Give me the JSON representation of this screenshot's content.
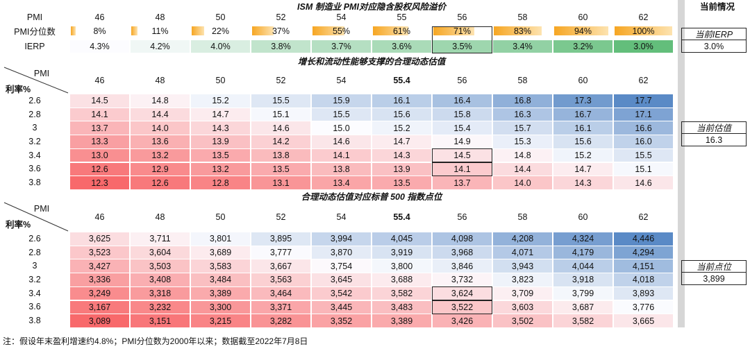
{
  "title": "ISM 制造业 PMI对应隐含股权风险溢价",
  "current_header": "当前情况",
  "top_table": {
    "row_labels": [
      "PMI",
      "PMI分位数",
      "IERP"
    ],
    "pmi": [
      "46",
      "48",
      "50",
      "52",
      "54",
      "55",
      "56",
      "58",
      "60",
      "62"
    ],
    "percentile": {
      "values": [
        8,
        11,
        22,
        37,
        55,
        61,
        71,
        83,
        94,
        100
      ],
      "value_labels": [
        "8%",
        "11%",
        "22%",
        "37%",
        "55%",
        "61%",
        "71%",
        "83%",
        "94%",
        "100%"
      ]
    },
    "ierp": [
      "4.3%",
      "4.2%",
      "4.0%",
      "3.8%",
      "3.7%",
      "3.6%",
      "3.5%",
      "3.4%",
      "3.2%",
      "3.0%"
    ]
  },
  "valuation": {
    "title": "增长和流动性能够支撑的合理动态估值",
    "corner_top": "PMI",
    "corner_bottom": "利率%",
    "pmi": [
      "46",
      "48",
      "50",
      "52",
      "54",
      "55.4",
      "56",
      "58",
      "60",
      "62"
    ],
    "rates": [
      "2.6",
      "2.8",
      "3",
      "3.2",
      "3.4",
      "3.6",
      "3.8"
    ],
    "rows": [
      [
        "14.5",
        "14.8",
        "15.2",
        "15.5",
        "15.9",
        "16.1",
        "16.4",
        "16.8",
        "17.3",
        "17.7"
      ],
      [
        "14.1",
        "14.4",
        "14.7",
        "15.1",
        "15.5",
        "15.6",
        "15.8",
        "16.3",
        "16.7",
        "17.1"
      ],
      [
        "13.7",
        "14.0",
        "14.3",
        "14.6",
        "15.0",
        "15.2",
        "15.4",
        "15.7",
        "16.1",
        "16.6"
      ],
      [
        "13.3",
        "13.6",
        "13.9",
        "14.2",
        "14.6",
        "14.7",
        "14.9",
        "15.3",
        "15.6",
        "16.0"
      ],
      [
        "13.0",
        "13.2",
        "13.5",
        "13.8",
        "14.1",
        "14.3",
        "14.5",
        "14.8",
        "15.2",
        "15.5"
      ],
      [
        "12.6",
        "12.9",
        "13.2",
        "13.5",
        "13.8",
        "13.9",
        "14.1",
        "14.4",
        "14.7",
        "15.1"
      ],
      [
        "12.3",
        "12.6",
        "12.8",
        "13.1",
        "13.4",
        "13.5",
        "13.7",
        "14.0",
        "14.3",
        "14.6"
      ]
    ]
  },
  "index_points": {
    "title": "合理动态估值对应标普 500 指数点位",
    "corner_top": "PMI",
    "corner_bottom": "利率%",
    "pmi": [
      "46",
      "48",
      "50",
      "52",
      "54",
      "55.4",
      "56",
      "58",
      "60",
      "62"
    ],
    "rates": [
      "2.6",
      "2.8",
      "3",
      "3.2",
      "3.4",
      "3.6",
      "3.8"
    ],
    "rows": [
      [
        "3,625",
        "3,711",
        "3,801",
        "3,895",
        "3,994",
        "4,045",
        "4,098",
        "4,208",
        "4,324",
        "4,446"
      ],
      [
        "3,523",
        "3,604",
        "3,689",
        "3,777",
        "3,870",
        "3,919",
        "3,968",
        "4,071",
        "4,179",
        "4,294"
      ],
      [
        "3,427",
        "3,503",
        "3,583",
        "3,667",
        "3,754",
        "3,800",
        "3,846",
        "3,943",
        "4,044",
        "4,151"
      ],
      [
        "3,336",
        "3,408",
        "3,484",
        "3,563",
        "3,645",
        "3,688",
        "3,732",
        "3,823",
        "3,918",
        "4,018"
      ],
      [
        "3,249",
        "3,318",
        "3,389",
        "3,464",
        "3,542",
        "3,582",
        "3,624",
        "3,709",
        "3,799",
        "3,893"
      ],
      [
        "3,167",
        "3,232",
        "3,300",
        "3,371",
        "3,445",
        "3,483",
        "3,522",
        "3,603",
        "3,687",
        "3,776"
      ],
      [
        "3,089",
        "3,151",
        "3,215",
        "3,282",
        "3,352",
        "3,389",
        "3,426",
        "3,502",
        "3,582",
        "3,665"
      ]
    ]
  },
  "current": {
    "ierp_label": "当前IERP",
    "ierp": "3.0%",
    "valuation_label": "当前估值",
    "valuation": "16.3",
    "points_label": "当前点位",
    "points": "3,899"
  },
  "footnote": "注：假设年末盈利增速约4.8%；PMI分位数为2000年以来；数据截至2022年7月8日"
}
